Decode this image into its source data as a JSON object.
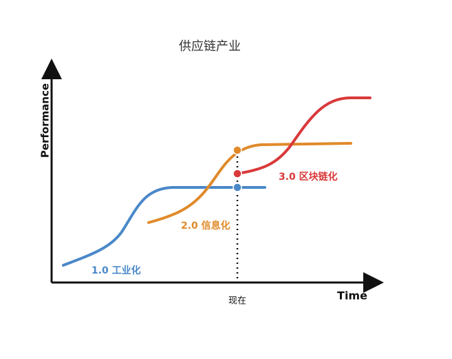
{
  "title": "供应链产业",
  "y_axis_label": "Performance",
  "x_axis_label": "Time",
  "now_label": "现在",
  "curves": [
    {
      "label": "1.0 工业化",
      "color": "#4a88c8"
    },
    {
      "label": "2.0 信息化",
      "color": "#e08a2a"
    },
    {
      "label": "3.0 区块链化",
      "color": "#d9393a"
    }
  ]
}
